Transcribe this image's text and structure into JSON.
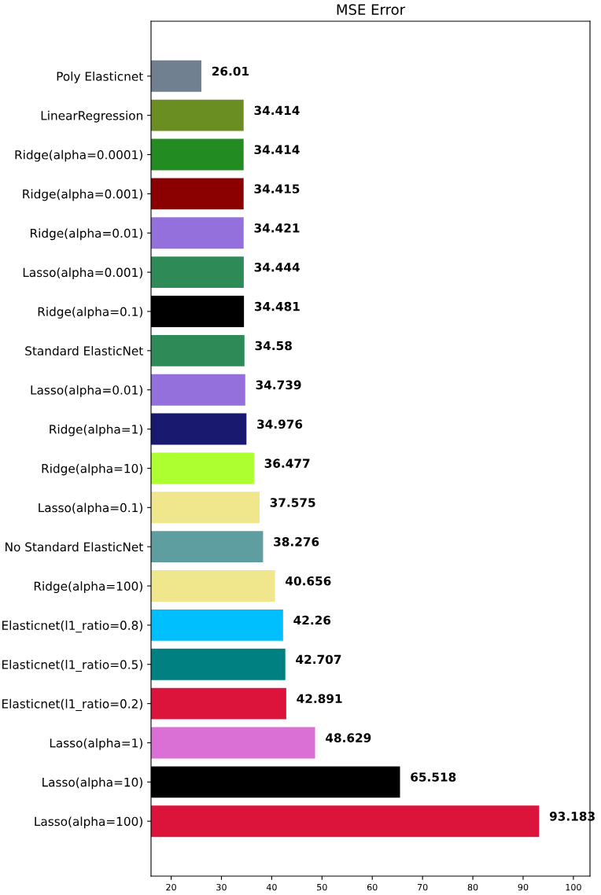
{
  "chart_data": {
    "type": "bar",
    "orientation": "horizontal",
    "title": "MSE Error",
    "categories": [
      "Poly Elasticnet",
      "LinearRegression",
      "Ridge(alpha=0.0001)",
      "Ridge(alpha=0.001)",
      "Ridge(alpha=0.01)",
      "Lasso(alpha=0.001)",
      "Ridge(alpha=0.1)",
      "Standard ElasticNet",
      "Lasso(alpha=0.01)",
      "Ridge(alpha=1)",
      "Ridge(alpha=10)",
      "Lasso(alpha=0.1)",
      "No Standard ElasticNet",
      "Ridge(alpha=100)",
      "Elasticnet(l1_ratio=0.8)",
      "Elasticnet(l1_ratio=0.5)",
      "Elasticnet(l1_ratio=0.2)",
      "Lasso(alpha=1)",
      "Lasso(alpha=10)",
      "Lasso(alpha=100)"
    ],
    "values": [
      26.01,
      34.414,
      34.414,
      34.415,
      34.421,
      34.444,
      34.481,
      34.58,
      34.739,
      34.976,
      36.477,
      37.575,
      38.276,
      40.656,
      42.26,
      42.707,
      42.891,
      48.629,
      65.518,
      93.183
    ],
    "colors": [
      "#708090",
      "#6b8e23",
      "#228b22",
      "#8b0000",
      "#9370db",
      "#2e8b57",
      "#000000",
      "#2e8b57",
      "#9370db",
      "#191970",
      "#adff2f",
      "#f0e68c",
      "#5f9ea0",
      "#f0e68c",
      "#00bfff",
      "#008080",
      "#dc143c",
      "#da70d6",
      "#000000",
      "#dc143c"
    ],
    "xlim": [
      16,
      103.3
    ],
    "xticks": [
      20,
      30,
      40,
      50,
      60,
      70,
      80,
      90,
      100
    ],
    "data_labels": true,
    "grid": false,
    "legend": false
  }
}
